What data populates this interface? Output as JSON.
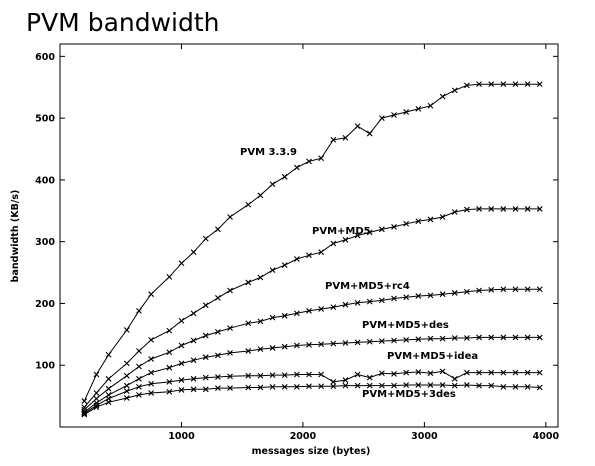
{
  "title": "PVM bandwidth",
  "chart_data": {
    "type": "line",
    "xlabel": "messages size (bytes)",
    "ylabel": "bandwidth (KB/s)",
    "xlim": [
      0,
      4100
    ],
    "ylim": [
      0,
      620
    ],
    "xticks": [
      1000,
      2000,
      3000,
      4000
    ],
    "yticks": [
      100,
      200,
      300,
      400,
      500,
      600
    ],
    "grid": false,
    "legend": "inline labels",
    "x": [
      200,
      300,
      400,
      550,
      650,
      750,
      900,
      1000,
      1100,
      1200,
      1300,
      1400,
      1550,
      1650,
      1750,
      1850,
      1950,
      2050,
      2150,
      2250,
      2350,
      2450,
      2550,
      2650,
      2750,
      2850,
      2950,
      3050,
      3150,
      3250,
      3350,
      3450,
      3550,
      3650,
      3750,
      3850,
      3950
    ],
    "series": [
      {
        "name": "PVM 3.3.9",
        "values": [
          42,
          85,
          117,
          157,
          188,
          215,
          243,
          265,
          283,
          305,
          320,
          340,
          360,
          375,
          393,
          405,
          420,
          430,
          435,
          465,
          468,
          487,
          475,
          500,
          505,
          510,
          515,
          520,
          535,
          545,
          553,
          555,
          555,
          555,
          555,
          555,
          555
        ]
      },
      {
        "name": "PVM+MD5",
        "values": [
          32,
          55,
          78,
          103,
          123,
          141,
          156,
          172,
          184,
          197,
          209,
          221,
          234,
          242,
          254,
          262,
          272,
          278,
          283,
          297,
          303,
          310,
          315,
          320,
          324,
          329,
          333,
          336,
          340,
          348,
          352,
          353,
          353,
          353,
          353,
          353,
          353
        ]
      },
      {
        "name": "PVM+MD5+rc4",
        "values": [
          28,
          46,
          62,
          83,
          98,
          110,
          121,
          132,
          140,
          148,
          154,
          160,
          168,
          171,
          177,
          180,
          184,
          188,
          191,
          194,
          198,
          201,
          203,
          205,
          208,
          210,
          212,
          213,
          215,
          217,
          219,
          221,
          222,
          223,
          223,
          223,
          223
        ]
      },
      {
        "name": "PVM+MD5+des",
        "values": [
          24,
          39,
          52,
          67,
          78,
          88,
          96,
          103,
          108,
          113,
          116,
          120,
          123,
          126,
          128,
          130,
          132,
          133,
          134,
          135,
          136,
          137,
          138,
          139,
          140,
          141,
          142,
          143,
          143,
          144,
          144,
          145,
          145,
          145,
          145,
          145,
          145
        ]
      },
      {
        "name": "PVM+MD5+idea",
        "values": [
          22,
          35,
          46,
          58,
          65,
          70,
          73,
          76,
          78,
          80,
          81,
          82,
          83,
          83,
          84,
          84,
          85,
          85,
          85,
          73,
          76,
          85,
          80,
          87,
          86,
          88,
          89,
          87,
          90,
          78,
          88,
          88,
          88,
          88,
          88,
          88,
          88
        ]
      },
      {
        "name": "PVM+MD5+3des",
        "values": [
          20,
          32,
          40,
          47,
          52,
          55,
          57,
          60,
          61,
          61,
          63,
          63,
          64,
          64,
          65,
          65,
          65,
          66,
          66,
          66,
          67,
          67,
          67,
          67,
          67,
          68,
          68,
          68,
          68,
          67,
          68,
          67,
          67,
          65,
          65,
          65,
          64
        ]
      }
    ]
  }
}
